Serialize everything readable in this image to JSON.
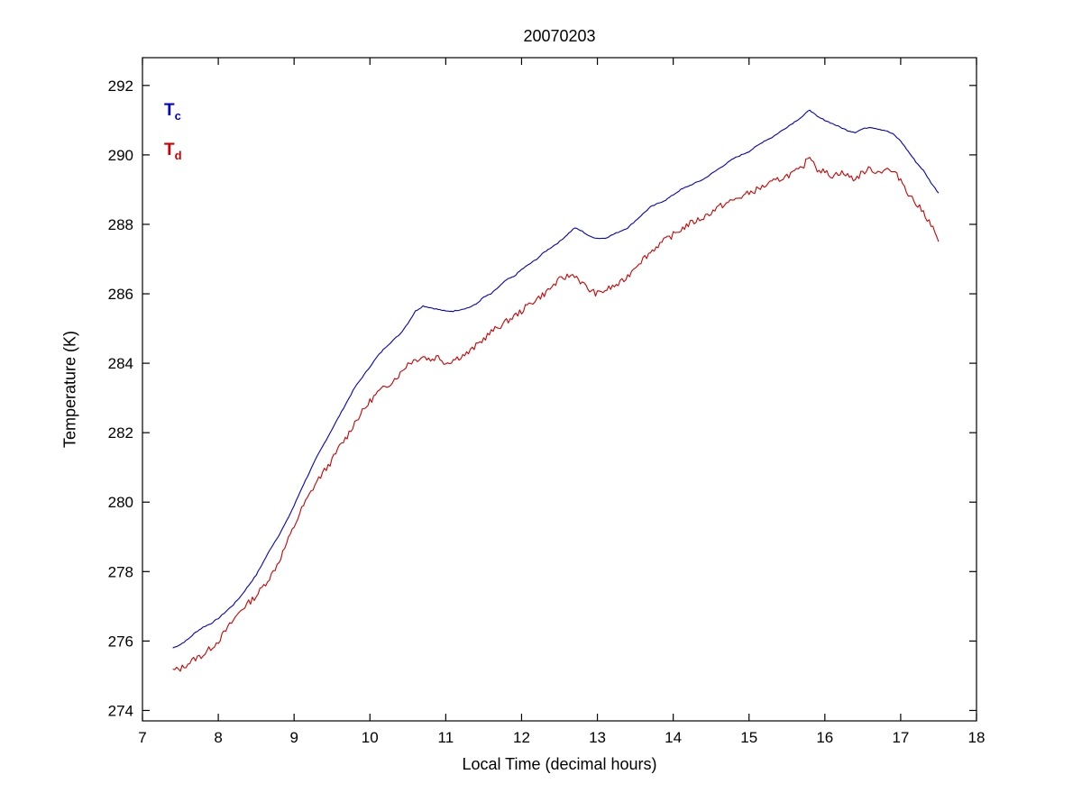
{
  "figure": {
    "title": "20070203"
  },
  "chart_data": {
    "type": "line",
    "title": "20070203",
    "xlabel": "Local Time (decimal hours)",
    "ylabel": "Temperature (K)",
    "xlim": [
      7,
      18
    ],
    "ylim": [
      273.7,
      292.8
    ],
    "xticks": [
      7,
      8,
      9,
      10,
      11,
      12,
      13,
      14,
      15,
      16,
      17,
      18
    ],
    "yticks": [
      274,
      276,
      278,
      280,
      282,
      284,
      286,
      288,
      290,
      292
    ],
    "grid": false,
    "legend": {
      "position": "top-left-inside",
      "items": [
        {
          "main": "T",
          "sub": "c",
          "color": "#0000cc"
        },
        {
          "main": "T",
          "sub": "d",
          "color": "#cc0000"
        }
      ]
    },
    "series": [
      {
        "name": "Tc",
        "color": "#0000cc",
        "noise": 0.015,
        "seed": 7,
        "x_start": 7.4,
        "x_step": 0.1,
        "values": [
          275.8,
          275.9,
          276.05,
          276.25,
          276.4,
          276.5,
          276.65,
          276.85,
          277.05,
          277.3,
          277.6,
          277.9,
          278.3,
          278.7,
          279.05,
          279.45,
          279.9,
          280.4,
          280.85,
          281.3,
          281.7,
          282.1,
          282.5,
          282.9,
          283.3,
          283.6,
          283.9,
          284.2,
          284.45,
          284.65,
          284.85,
          285.15,
          285.5,
          285.65,
          285.6,
          285.55,
          285.5,
          285.5,
          285.55,
          285.6,
          285.7,
          285.9,
          286.0,
          286.2,
          286.4,
          286.5,
          286.7,
          286.85,
          287.0,
          287.2,
          287.35,
          287.5,
          287.7,
          287.9,
          287.8,
          287.65,
          287.6,
          287.6,
          287.7,
          287.8,
          287.9,
          288.1,
          288.3,
          288.5,
          288.6,
          288.7,
          288.85,
          289.0,
          289.1,
          289.2,
          289.3,
          289.45,
          289.6,
          289.75,
          289.9,
          290.0,
          290.1,
          290.25,
          290.4,
          290.5,
          290.65,
          290.8,
          290.95,
          291.1,
          291.3,
          291.1,
          291.0,
          290.9,
          290.8,
          290.7,
          290.65,
          290.75,
          290.8,
          290.75,
          290.7,
          290.6,
          290.4,
          290.1,
          289.8,
          289.55,
          289.2,
          288.9
        ]
      },
      {
        "name": "Td",
        "color": "#cc0000",
        "noise": 0.09,
        "seed": 13,
        "x_start": 7.4,
        "x_step": 0.1,
        "values": [
          275.15,
          275.2,
          275.35,
          275.5,
          275.6,
          275.8,
          276.0,
          276.3,
          276.6,
          276.9,
          277.1,
          277.3,
          277.6,
          277.9,
          278.3,
          278.8,
          279.3,
          279.8,
          280.2,
          280.6,
          280.9,
          281.2,
          281.6,
          281.9,
          282.3,
          282.6,
          282.9,
          283.15,
          283.3,
          283.5,
          283.7,
          284.0,
          284.1,
          284.2,
          284.1,
          284.2,
          284.0,
          284.1,
          284.2,
          284.3,
          284.5,
          284.7,
          284.9,
          285.05,
          285.2,
          285.35,
          285.5,
          285.7,
          285.85,
          286.0,
          286.2,
          286.4,
          286.5,
          286.55,
          286.3,
          286.1,
          286.0,
          286.1,
          286.2,
          286.3,
          286.5,
          286.8,
          287.0,
          287.2,
          287.4,
          287.55,
          287.7,
          287.85,
          288.0,
          288.1,
          288.2,
          288.35,
          288.5,
          288.6,
          288.7,
          288.8,
          288.9,
          289.0,
          289.1,
          289.2,
          289.3,
          289.4,
          289.5,
          289.6,
          290.0,
          289.6,
          289.5,
          289.4,
          289.5,
          289.4,
          289.3,
          289.5,
          289.6,
          289.5,
          289.6,
          289.5,
          289.3,
          288.9,
          288.6,
          288.35,
          288.0,
          287.5
        ]
      }
    ]
  }
}
